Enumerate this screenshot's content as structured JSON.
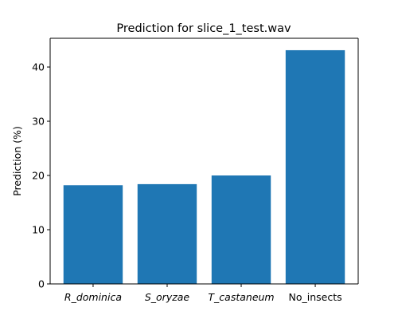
{
  "chart_data": {
    "type": "bar",
    "title": "Prediction for slice_1_test.wav",
    "xlabel": "",
    "ylabel": "Prediction (%)",
    "categories": [
      "R_dominica",
      "S_oryzae",
      "T_castaneum",
      "No_insects"
    ],
    "italic_categories": [
      "R_dominica",
      "S_oryzae",
      "T_castaneum"
    ],
    "values": [
      18.2,
      18.4,
      20.0,
      43.1
    ],
    "ylim": [
      0,
      45.3
    ],
    "yticks": [
      0,
      10,
      20,
      30,
      40
    ],
    "bar_color": "#1f77b4",
    "grid": false,
    "legend": "none"
  }
}
